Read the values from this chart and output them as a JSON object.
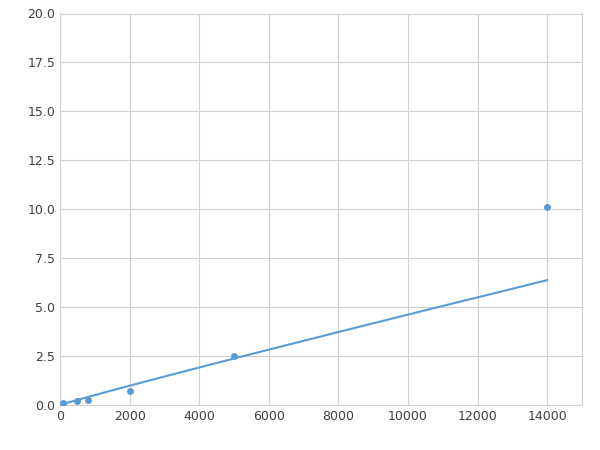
{
  "x": [
    100,
    500,
    800,
    2000,
    5000,
    14000
  ],
  "y": [
    0.1,
    0.2,
    0.25,
    0.7,
    2.5,
    10.1
  ],
  "line_color": "#5b9bd5",
  "marker_color": "#5b9bd5",
  "marker_size": 5,
  "xlim": [
    0,
    15000
  ],
  "ylim": [
    0,
    20
  ],
  "xticks": [
    0,
    2000,
    4000,
    6000,
    8000,
    10000,
    12000,
    14000
  ],
  "yticks": [
    0.0,
    2.5,
    5.0,
    7.5,
    10.0,
    12.5,
    15.0,
    17.5,
    20.0
  ],
  "grid_color": "#d0d0d0",
  "background_color": "#ffffff",
  "fig_width": 6.0,
  "fig_height": 4.5,
  "dpi": 100
}
